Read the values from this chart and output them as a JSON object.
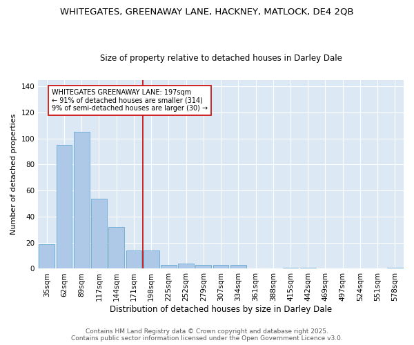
{
  "title": "WHITEGATES, GREENAWAY LANE, HACKNEY, MATLOCK, DE4 2QB",
  "subtitle": "Size of property relative to detached houses in Darley Dale",
  "xlabel": "Distribution of detached houses by size in Darley Dale",
  "ylabel": "Number of detached properties",
  "categories": [
    "35sqm",
    "62sqm",
    "89sqm",
    "117sqm",
    "144sqm",
    "171sqm",
    "198sqm",
    "225sqm",
    "252sqm",
    "279sqm",
    "307sqm",
    "334sqm",
    "361sqm",
    "388sqm",
    "415sqm",
    "442sqm",
    "469sqm",
    "497sqm",
    "524sqm",
    "551sqm",
    "578sqm"
  ],
  "values": [
    19,
    95,
    105,
    54,
    32,
    14,
    14,
    3,
    4,
    3,
    3,
    3,
    0,
    0,
    1,
    1,
    0,
    0,
    0,
    0,
    1
  ],
  "bar_color": "#aec9e8",
  "bar_edge_color": "#6aaad4",
  "background_color": "#dce9f5",
  "fig_background": "#ffffff",
  "vline_color": "#cc0000",
  "annotation_title": "WHITEGATES GREENAWAY LANE: 197sqm",
  "annotation_line1": "← 91% of detached houses are smaller (314)",
  "annotation_line2": "9% of semi-detached houses are larger (30) →",
  "annotation_box_facecolor": "#ffffff",
  "annotation_box_edgecolor": "#cc0000",
  "footer1": "Contains HM Land Registry data © Crown copyright and database right 2025.",
  "footer2": "Contains public sector information licensed under the Open Government Licence v3.0.",
  "ylim": [
    0,
    145
  ],
  "yticks": [
    0,
    20,
    40,
    60,
    80,
    100,
    120,
    140
  ],
  "title_fontsize": 9.5,
  "subtitle_fontsize": 8.5,
  "xlabel_fontsize": 8.5,
  "ylabel_fontsize": 8,
  "tick_fontsize": 7.5,
  "annotation_fontsize": 7,
  "footer_fontsize": 6.5
}
